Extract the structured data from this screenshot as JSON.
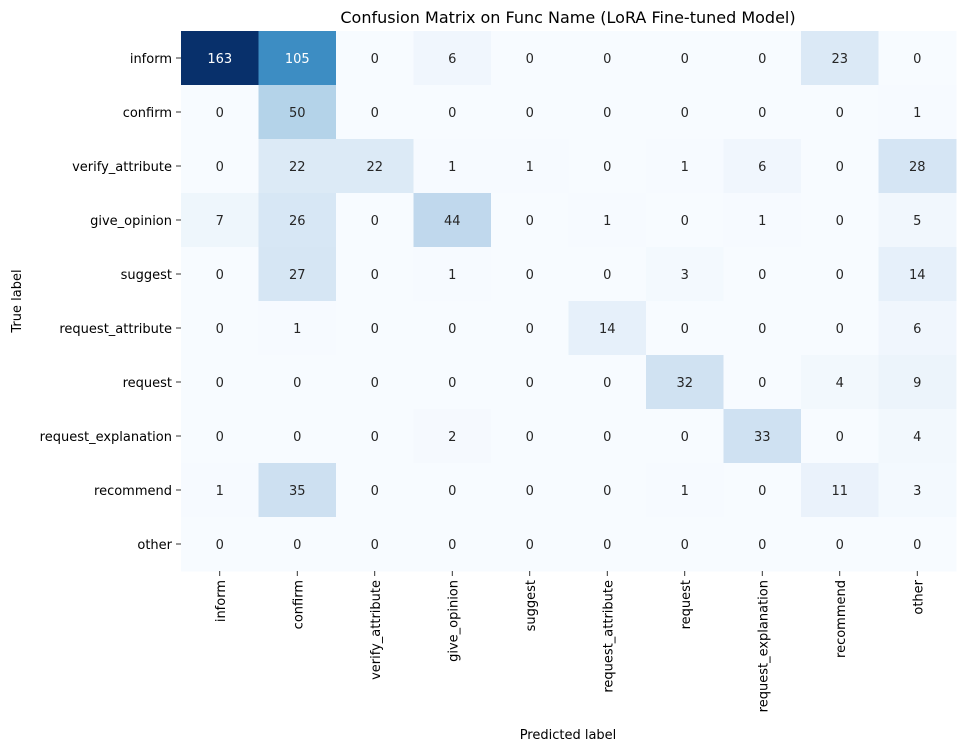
{
  "chart_data": {
    "type": "heatmap",
    "title": "Confusion Matrix on Func Name (LoRA Fine-tuned Model)",
    "xlabel": "Predicted label",
    "ylabel": "True label",
    "row_labels": [
      "inform",
      "confirm",
      "verify_attribute",
      "give_opinion",
      "suggest",
      "request_attribute",
      "request",
      "request_explanation",
      "recommend",
      "other"
    ],
    "col_labels": [
      "inform",
      "confirm",
      "verify_attribute",
      "give_opinion",
      "suggest",
      "request_attribute",
      "request",
      "request_explanation",
      "recommend",
      "other"
    ],
    "values": [
      [
        163,
        105,
        0,
        6,
        0,
        0,
        0,
        0,
        23,
        0
      ],
      [
        0,
        50,
        0,
        0,
        0,
        0,
        0,
        0,
        0,
        1
      ],
      [
        0,
        22,
        22,
        1,
        1,
        0,
        1,
        6,
        0,
        28
      ],
      [
        7,
        26,
        0,
        44,
        0,
        1,
        0,
        1,
        0,
        5
      ],
      [
        0,
        27,
        0,
        1,
        0,
        0,
        3,
        0,
        0,
        14
      ],
      [
        0,
        1,
        0,
        0,
        0,
        14,
        0,
        0,
        0,
        6
      ],
      [
        0,
        0,
        0,
        0,
        0,
        0,
        32,
        0,
        4,
        9
      ],
      [
        0,
        0,
        0,
        2,
        0,
        0,
        0,
        33,
        0,
        4
      ],
      [
        1,
        35,
        0,
        0,
        0,
        0,
        1,
        0,
        11,
        3
      ],
      [
        0,
        0,
        0,
        0,
        0,
        0,
        0,
        0,
        0,
        0
      ]
    ],
    "colormap": "Blues",
    "color_range": [
      0,
      163
    ],
    "colorbar": false,
    "grid": false
  }
}
